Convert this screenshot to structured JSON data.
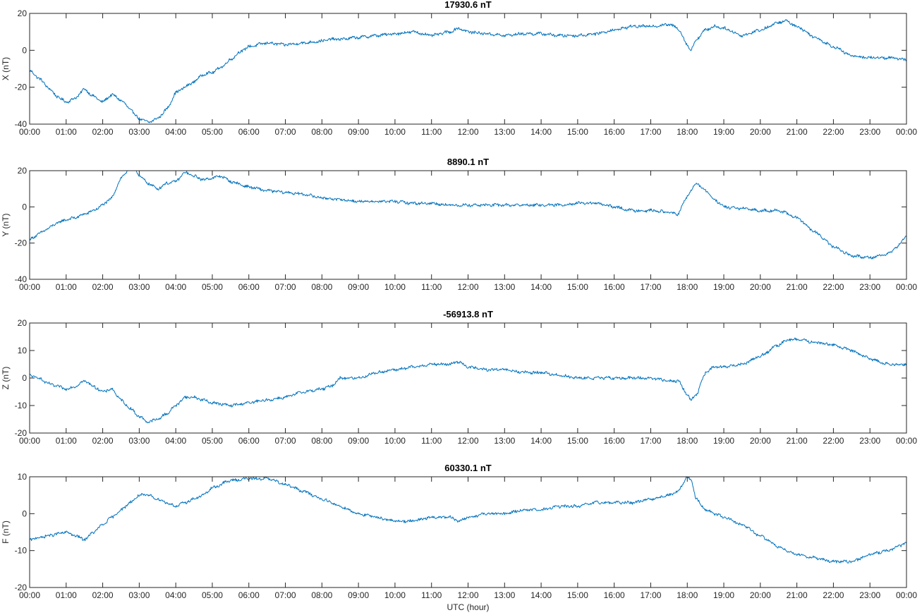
{
  "chart_data": [
    {
      "type": "line",
      "title": "17930.6 nT",
      "ylabel": "X (nT)",
      "xlabel": "",
      "xlim": [
        0,
        24
      ],
      "ylim": [
        -40,
        20
      ],
      "yticks": [
        -40,
        -20,
        0,
        20
      ],
      "xtick_labels": [
        "00:00",
        "01:00",
        "02:00",
        "03:00",
        "04:00",
        "05:00",
        "06:00",
        "07:00",
        "08:00",
        "09:00",
        "10:00",
        "11:00",
        "12:00",
        "13:00",
        "14:00",
        "15:00",
        "16:00",
        "17:00",
        "18:00",
        "19:00",
        "20:00",
        "21:00",
        "22:00",
        "23:00",
        "00:00"
      ],
      "grid": false,
      "color": "#0072bd",
      "x": [
        0.0,
        0.25,
        0.5,
        0.75,
        1.0,
        1.25,
        1.5,
        1.75,
        2.0,
        2.25,
        2.5,
        2.75,
        3.0,
        3.25,
        3.5,
        3.75,
        4.0,
        4.25,
        4.5,
        4.75,
        5.0,
        5.25,
        5.5,
        5.75,
        6.0,
        6.5,
        7.0,
        7.5,
        8.0,
        8.25,
        8.5,
        9.0,
        9.5,
        10.0,
        10.5,
        11.0,
        11.5,
        11.75,
        12.0,
        12.5,
        13.0,
        13.5,
        14.0,
        14.5,
        15.0,
        15.5,
        16.0,
        16.5,
        17.0,
        17.5,
        17.75,
        18.0,
        18.1,
        18.25,
        18.5,
        18.75,
        19.0,
        19.5,
        20.0,
        20.5,
        20.7,
        21.0,
        21.5,
        22.0,
        22.5,
        23.0,
        23.5,
        24.0
      ],
      "values": [
        -11,
        -15,
        -20,
        -25,
        -28,
        -26,
        -21,
        -25,
        -28,
        -24,
        -27,
        -32,
        -37,
        -39,
        -37,
        -32,
        -23,
        -20,
        -17,
        -13,
        -12,
        -9,
        -5,
        -1,
        2,
        4,
        3,
        4,
        5,
        6,
        6,
        7,
        8,
        9,
        10,
        8,
        10,
        12,
        10,
        9,
        8,
        9,
        9,
        8,
        8,
        9,
        11,
        13,
        13,
        14,
        12,
        3,
        0,
        6,
        11,
        13,
        12,
        8,
        11,
        15,
        16,
        13,
        7,
        2,
        -3,
        -4,
        -4,
        -5
      ]
    },
    {
      "type": "line",
      "title": "8890.1 nT",
      "ylabel": "Y (nT)",
      "xlabel": "",
      "xlim": [
        0,
        24
      ],
      "ylim": [
        -40,
        20
      ],
      "yticks": [
        -40,
        -20,
        0,
        20
      ],
      "xtick_labels": [
        "00:00",
        "01:00",
        "02:00",
        "03:00",
        "04:00",
        "05:00",
        "06:00",
        "07:00",
        "08:00",
        "09:00",
        "10:00",
        "11:00",
        "12:00",
        "13:00",
        "14:00",
        "15:00",
        "16:00",
        "17:00",
        "18:00",
        "19:00",
        "20:00",
        "21:00",
        "22:00",
        "23:00",
        "00:00"
      ],
      "grid": false,
      "color": "#0072bd",
      "x": [
        0.0,
        0.25,
        0.5,
        0.75,
        1.0,
        1.25,
        1.5,
        1.75,
        2.0,
        2.25,
        2.5,
        2.75,
        2.9,
        3.0,
        3.25,
        3.5,
        3.75,
        4.0,
        4.25,
        4.5,
        4.75,
        5.0,
        5.25,
        5.5,
        6.0,
        6.5,
        7.0,
        7.5,
        8.0,
        8.5,
        9.0,
        9.5,
        10.0,
        10.5,
        11.0,
        11.5,
        12.0,
        12.5,
        13.0,
        13.5,
        14.0,
        14.5,
        15.0,
        15.5,
        16.0,
        16.5,
        17.0,
        17.5,
        17.75,
        18.0,
        18.25,
        18.5,
        18.75,
        19.0,
        19.5,
        20.0,
        20.5,
        21.0,
        21.5,
        22.0,
        22.5,
        23.0,
        23.5,
        23.75,
        24.0
      ],
      "values": [
        -18,
        -15,
        -12,
        -9,
        -7,
        -6,
        -4,
        -2,
        1,
        5,
        16,
        21,
        21,
        17,
        13,
        10,
        13,
        14,
        19,
        17,
        15,
        16,
        17,
        14,
        11,
        9,
        8,
        7,
        5,
        4,
        3,
        3,
        3,
        2,
        2,
        1,
        1,
        1,
        1,
        1,
        1,
        1,
        2,
        2,
        0,
        -2,
        -2,
        -3,
        -4,
        6,
        13,
        9,
        4,
        0,
        -1,
        -2,
        -2,
        -6,
        -14,
        -22,
        -27,
        -28,
        -26,
        -22,
        -16
      ]
    },
    {
      "type": "line",
      "title": "-56913.8 nT",
      "ylabel": "Z (nT)",
      "xlabel": "",
      "xlim": [
        0,
        24
      ],
      "ylim": [
        -20,
        20
      ],
      "yticks": [
        -20,
        -10,
        0,
        10,
        20
      ],
      "xtick_labels": [
        "00:00",
        "01:00",
        "02:00",
        "03:00",
        "04:00",
        "05:00",
        "06:00",
        "07:00",
        "08:00",
        "09:00",
        "10:00",
        "11:00",
        "12:00",
        "13:00",
        "14:00",
        "15:00",
        "16:00",
        "17:00",
        "18:00",
        "19:00",
        "20:00",
        "21:00",
        "22:00",
        "23:00",
        "00:00"
      ],
      "grid": false,
      "color": "#0072bd",
      "x": [
        0.0,
        0.25,
        0.5,
        0.75,
        1.0,
        1.25,
        1.5,
        1.75,
        2.0,
        2.25,
        2.5,
        2.75,
        3.0,
        3.25,
        3.5,
        3.75,
        4.0,
        4.25,
        4.5,
        4.75,
        5.0,
        5.5,
        6.0,
        6.5,
        7.0,
        7.5,
        8.0,
        8.25,
        8.5,
        9.0,
        9.5,
        10.0,
        10.5,
        11.0,
        11.5,
        11.75,
        12.0,
        12.5,
        13.0,
        13.5,
        14.0,
        14.5,
        15.0,
        15.5,
        16.0,
        16.5,
        17.0,
        17.5,
        17.75,
        18.0,
        18.1,
        18.25,
        18.5,
        18.75,
        19.0,
        19.5,
        20.0,
        20.5,
        20.75,
        21.0,
        21.5,
        22.0,
        22.5,
        23.0,
        23.5,
        24.0
      ],
      "values": [
        1,
        0,
        -2,
        -3,
        -4,
        -3,
        -1,
        -3,
        -5,
        -4,
        -8,
        -11,
        -14,
        -16,
        -15,
        -13,
        -10,
        -7,
        -7,
        -8,
        -9,
        -10,
        -9,
        -8,
        -7,
        -5,
        -4,
        -3,
        0,
        0,
        2,
        3,
        4,
        5,
        5,
        6,
        4,
        3,
        3,
        2,
        2,
        1,
        0,
        0,
        0,
        0,
        0,
        -1,
        -1,
        -6,
        -8,
        -6,
        2,
        4,
        4,
        5,
        8,
        12,
        14,
        14,
        13,
        12,
        10,
        7,
        5,
        5
      ]
    },
    {
      "type": "line",
      "title": "60330.1 nT",
      "ylabel": "F (nT)",
      "xlabel": "UTC (hour)",
      "xlim": [
        0,
        24
      ],
      "ylim": [
        -20,
        10
      ],
      "yticks": [
        -20,
        -10,
        0,
        10
      ],
      "xtick_labels": [
        "00:00",
        "01:00",
        "02:00",
        "03:00",
        "04:00",
        "05:00",
        "06:00",
        "07:00",
        "08:00",
        "09:00",
        "10:00",
        "11:00",
        "12:00",
        "13:00",
        "14:00",
        "15:00",
        "16:00",
        "17:00",
        "18:00",
        "19:00",
        "20:00",
        "21:00",
        "22:00",
        "23:00",
        "00:00"
      ],
      "grid": false,
      "color": "#0072bd",
      "x": [
        0.0,
        0.25,
        0.5,
        0.75,
        1.0,
        1.25,
        1.5,
        1.75,
        2.0,
        2.25,
        2.5,
        2.75,
        3.0,
        3.25,
        3.5,
        3.75,
        4.0,
        4.25,
        4.5,
        4.75,
        5.0,
        5.5,
        6.0,
        6.5,
        7.0,
        7.5,
        8.0,
        8.5,
        9.0,
        9.5,
        10.0,
        10.5,
        11.0,
        11.5,
        11.75,
        12.0,
        12.5,
        13.0,
        13.5,
        14.0,
        14.5,
        15.0,
        15.5,
        16.0,
        16.5,
        17.0,
        17.5,
        17.75,
        18.0,
        18.1,
        18.25,
        18.5,
        18.75,
        19.0,
        19.5,
        20.0,
        20.5,
        21.0,
        21.5,
        22.0,
        22.25,
        22.5,
        23.0,
        23.5,
        24.0
      ],
      "values": [
        -7,
        -6.5,
        -6,
        -5.5,
        -5,
        -6,
        -7,
        -5,
        -3,
        -1,
        1,
        3,
        5,
        5,
        4,
        3,
        2,
        3,
        4,
        5,
        7,
        9,
        9.5,
        9.5,
        8,
        6,
        4,
        2,
        0,
        -1,
        -2,
        -2,
        -1,
        -1,
        -2,
        -1,
        0,
        0,
        1,
        1,
        2,
        2,
        3,
        3,
        3,
        4,
        5,
        6,
        10,
        9,
        4,
        1,
        0,
        -1,
        -3,
        -6,
        -9,
        -11,
        -12,
        -13,
        -13,
        -13,
        -11,
        -10,
        -8
      ]
    }
  ]
}
